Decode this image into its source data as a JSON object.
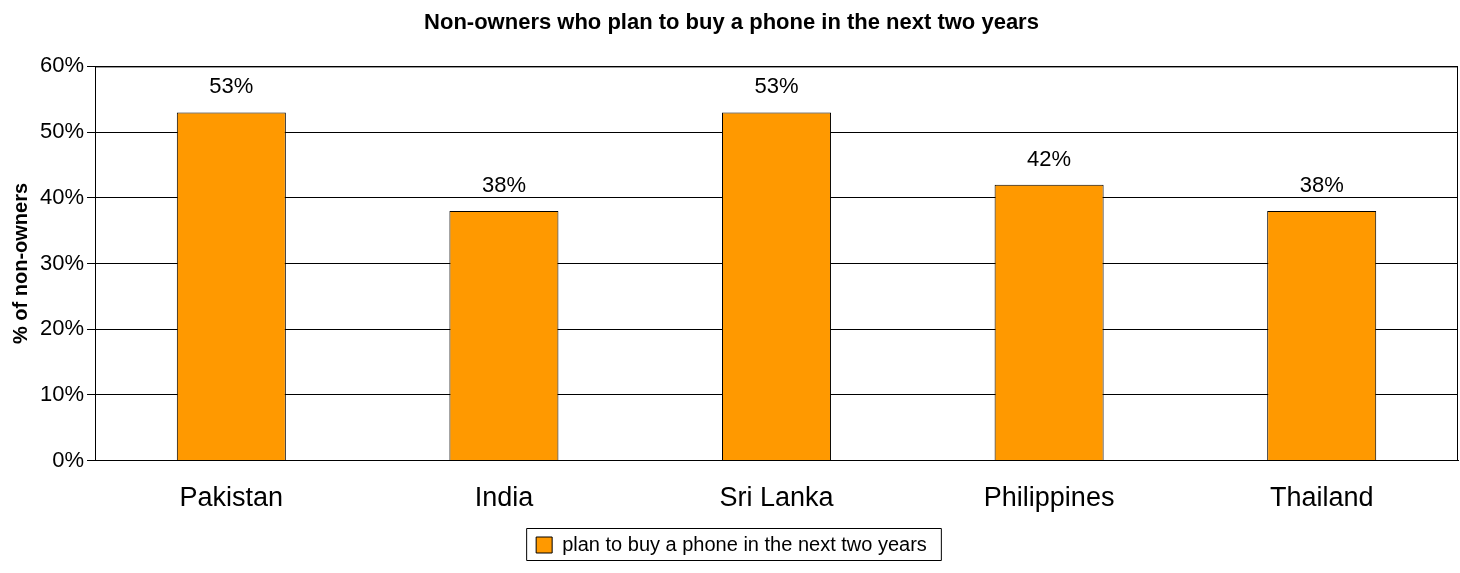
{
  "chart_data": {
    "type": "bar",
    "title": "Non-owners who plan to buy a phone in the next two years",
    "ylabel": "% of non-owners",
    "categories": [
      "Pakistan",
      "India",
      "Sri Lanka",
      "Philippines",
      "Thailand"
    ],
    "series": [
      {
        "name": "plan to buy a phone in the next two years",
        "color": "#ff9900",
        "values": [
          53,
          38,
          53,
          42,
          38
        ],
        "value_labels": [
          "53%",
          "38%",
          "53%",
          "42%",
          "38%"
        ]
      }
    ],
    "ylim": [
      0,
      60
    ],
    "yticks": [
      {
        "value": 0,
        "label": "0%"
      },
      {
        "value": 10,
        "label": "10%"
      },
      {
        "value": 20,
        "label": "20%"
      },
      {
        "value": 30,
        "label": "30%"
      },
      {
        "value": 40,
        "label": "40%"
      },
      {
        "value": 50,
        "label": "50%"
      },
      {
        "value": 60,
        "label": "60%"
      }
    ],
    "grid": "y",
    "legend": "bottom"
  }
}
